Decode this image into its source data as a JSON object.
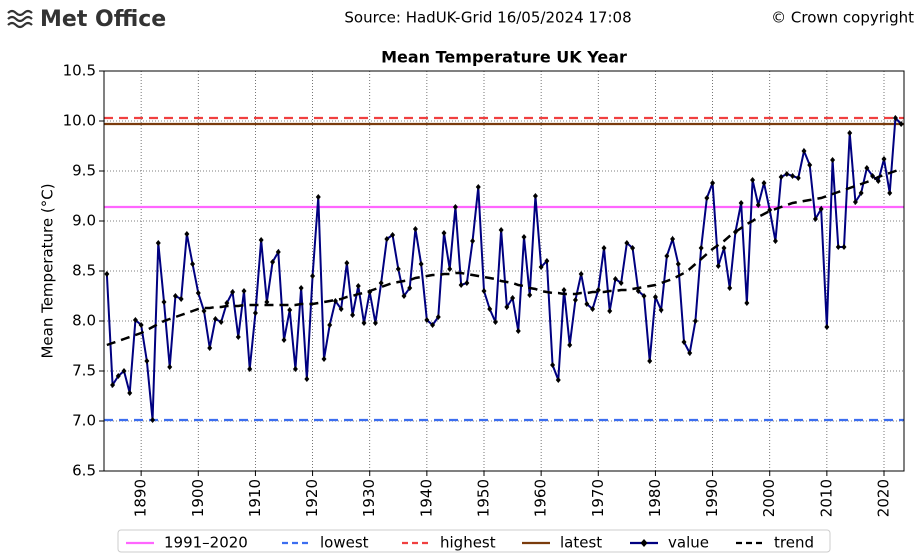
{
  "header": {
    "logo": "Met Office",
    "source": "Source: HadUK-Grid 16/05/2024 17:08",
    "copyright": "© Crown copyright"
  },
  "chart_data": {
    "type": "line",
    "title": "Mean Temperature UK Year",
    "y_label": "Mean Temperature (°C)",
    "x": [
      1884,
      1885,
      1886,
      1887,
      1888,
      1889,
      1890,
      1891,
      1892,
      1893,
      1894,
      1895,
      1896,
      1897,
      1898,
      1899,
      1900,
      1901,
      1902,
      1903,
      1904,
      1905,
      1906,
      1907,
      1908,
      1909,
      1910,
      1911,
      1912,
      1913,
      1914,
      1915,
      1916,
      1917,
      1918,
      1919,
      1920,
      1921,
      1922,
      1923,
      1924,
      1925,
      1926,
      1927,
      1928,
      1929,
      1930,
      1931,
      1932,
      1933,
      1934,
      1935,
      1936,
      1937,
      1938,
      1939,
      1940,
      1941,
      1942,
      1943,
      1944,
      1945,
      1946,
      1947,
      1948,
      1949,
      1950,
      1951,
      1952,
      1953,
      1954,
      1955,
      1956,
      1957,
      1958,
      1959,
      1960,
      1961,
      1962,
      1963,
      1964,
      1965,
      1966,
      1967,
      1968,
      1969,
      1970,
      1971,
      1972,
      1973,
      1974,
      1975,
      1976,
      1977,
      1978,
      1979,
      1980,
      1981,
      1982,
      1983,
      1984,
      1985,
      1986,
      1987,
      1988,
      1989,
      1990,
      1991,
      1992,
      1993,
      1994,
      1995,
      1996,
      1997,
      1998,
      1999,
      2000,
      2001,
      2002,
      2003,
      2004,
      2005,
      2006,
      2007,
      2008,
      2009,
      2010,
      2011,
      2012,
      2013,
      2014,
      2015,
      2016,
      2017,
      2018,
      2019,
      2020,
      2021,
      2022,
      2023
    ],
    "series": [
      {
        "name": "value",
        "color": "#000080",
        "marker": "diamond",
        "marker_color": "#000000",
        "style": "solid",
        "values": [
          8.47,
          7.36,
          7.45,
          7.5,
          7.28,
          8.01,
          7.96,
          7.6,
          7.01,
          8.78,
          8.19,
          7.54,
          8.25,
          8.22,
          8.87,
          8.57,
          8.28,
          8.1,
          7.73,
          8.02,
          7.99,
          8.18,
          8.29,
          7.84,
          8.3,
          7.52,
          8.08,
          8.81,
          8.19,
          8.59,
          8.69,
          7.81,
          8.11,
          7.52,
          8.33,
          7.42,
          8.45,
          9.24,
          7.62,
          7.96,
          8.2,
          8.12,
          8.58,
          8.06,
          8.35,
          7.98,
          8.29,
          7.98,
          8.38,
          8.82,
          8.86,
          8.52,
          8.25,
          8.33,
          8.92,
          8.57,
          8.01,
          7.96,
          8.04,
          8.88,
          8.52,
          9.14,
          8.36,
          8.38,
          8.8,
          9.34,
          8.3,
          8.12,
          7.99,
          8.91,
          8.14,
          8.23,
          7.9,
          8.84,
          8.26,
          9.25,
          8.54,
          8.6,
          7.56,
          7.41,
          8.31,
          7.76,
          8.21,
          8.47,
          8.17,
          8.12,
          8.31,
          8.73,
          8.1,
          8.42,
          8.38,
          8.78,
          8.73,
          8.3,
          8.25,
          7.6,
          8.24,
          8.11,
          8.65,
          8.82,
          8.57,
          7.79,
          7.68,
          8.0,
          8.73,
          9.23,
          9.38,
          8.55,
          8.73,
          8.33,
          8.89,
          9.18,
          8.18,
          9.41,
          9.16,
          9.38,
          9.11,
          8.8,
          9.44,
          9.47,
          9.45,
          9.43,
          9.7,
          9.56,
          9.02,
          9.12,
          7.94,
          9.61,
          8.74,
          8.74,
          9.88,
          9.19,
          9.28,
          9.53,
          9.45,
          9.4,
          9.62,
          9.28,
          10.03,
          9.97
        ]
      },
      {
        "name": "trend",
        "color": "#000000",
        "style": "dashed",
        "values": [
          7.76,
          7.78,
          7.8,
          7.82,
          7.84,
          7.86,
          7.88,
          7.91,
          7.94,
          7.97,
          8.0,
          8.02,
          8.04,
          8.06,
          8.08,
          8.1,
          8.12,
          8.13,
          8.13,
          8.14,
          8.14,
          8.15,
          8.15,
          8.15,
          8.16,
          8.16,
          8.16,
          8.16,
          8.16,
          8.16,
          8.16,
          8.16,
          8.16,
          8.16,
          8.17,
          8.17,
          8.17,
          8.18,
          8.19,
          8.2,
          8.21,
          8.22,
          8.24,
          8.25,
          8.27,
          8.28,
          8.3,
          8.32,
          8.34,
          8.36,
          8.38,
          8.39,
          8.4,
          8.41,
          8.43,
          8.44,
          8.45,
          8.46,
          8.46,
          8.47,
          8.47,
          8.48,
          8.48,
          8.47,
          8.46,
          8.45,
          8.44,
          8.43,
          8.42,
          8.4,
          8.39,
          8.38,
          8.36,
          8.35,
          8.33,
          8.32,
          8.3,
          8.29,
          8.28,
          8.28,
          8.27,
          8.27,
          8.27,
          8.28,
          8.28,
          8.29,
          8.29,
          8.29,
          8.3,
          8.3,
          8.31,
          8.31,
          8.32,
          8.33,
          8.34,
          8.35,
          8.36,
          8.38,
          8.4,
          8.42,
          8.45,
          8.48,
          8.52,
          8.57,
          8.62,
          8.67,
          8.72,
          8.76,
          8.8,
          8.85,
          8.89,
          8.93,
          8.97,
          9.0,
          9.04,
          9.07,
          9.1,
          9.12,
          9.14,
          9.16,
          9.18,
          9.19,
          9.2,
          9.21,
          9.22,
          9.23,
          9.25,
          9.27,
          9.29,
          9.31,
          9.33,
          9.35,
          9.37,
          9.39,
          9.41,
          9.44,
          9.46,
          9.48,
          9.5,
          9.52
        ]
      }
    ],
    "reference_lines": [
      {
        "name": "1991–2020",
        "value": 9.14,
        "color": "#ff66ff",
        "style": "solid"
      },
      {
        "name": "lowest",
        "value": 7.01,
        "color": "#3c6ef0",
        "style": "dashed"
      },
      {
        "name": "highest",
        "value": 10.03,
        "color": "#f04040",
        "style": "dashed"
      },
      {
        "name": "latest",
        "value": 9.97,
        "color": "#7a3b0c",
        "style": "solid"
      }
    ],
    "xlim": [
      1883.5,
      2023.5
    ],
    "xticks": [
      1890,
      1900,
      1910,
      1920,
      1930,
      1940,
      1950,
      1960,
      1970,
      1980,
      1990,
      2000,
      2010,
      2020
    ],
    "ylim": [
      6.5,
      10.5
    ],
    "yticks": [
      6.5,
      {
        "value": 7,
        "label": "7.0"
      },
      7.5,
      {
        "value": 8,
        "label": "8.0"
      },
      8.5,
      {
        "value": 9,
        "label": "9.0"
      },
      9.5,
      {
        "value": 10,
        "label": "10.0"
      },
      10.5
    ],
    "grid": true,
    "legend": "bottom"
  }
}
